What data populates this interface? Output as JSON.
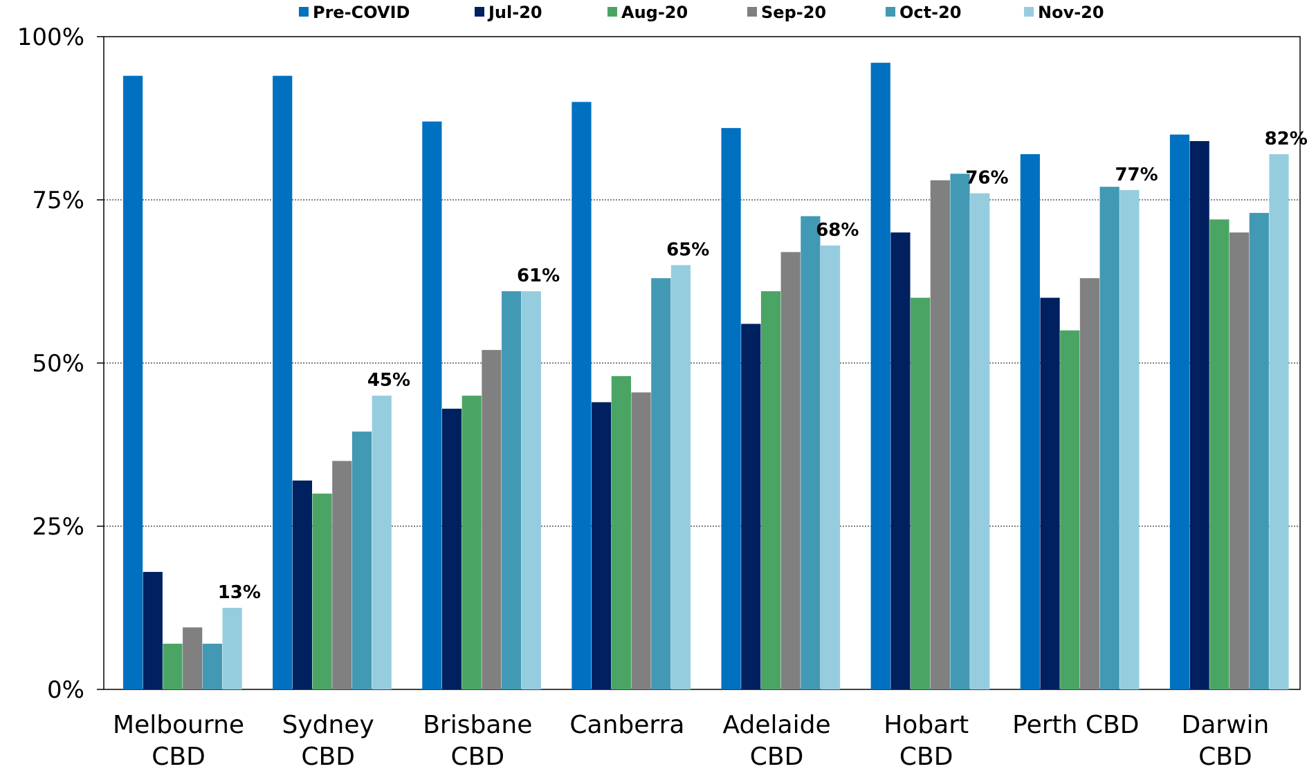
{
  "chart_data": {
    "type": "bar",
    "categories": [
      [
        "Melbourne",
        "CBD"
      ],
      [
        "Sydney",
        "CBD"
      ],
      [
        "Brisbane",
        "CBD"
      ],
      [
        "Canberra"
      ],
      [
        "Adelaide",
        "CBD"
      ],
      [
        "Hobart",
        "CBD"
      ],
      [
        "Perth CBD"
      ],
      [
        "Darwin",
        "CBD"
      ]
    ],
    "series": [
      {
        "name": "Pre-COVID",
        "color": "#0070C0",
        "values": [
          94,
          94,
          87,
          90,
          86,
          96,
          82,
          85
        ]
      },
      {
        "name": "Jul-20",
        "color": "#002060",
        "values": [
          18,
          32,
          43,
          44,
          56,
          70,
          60,
          84
        ]
      },
      {
        "name": "Aug-20",
        "color": "#4AA564",
        "values": [
          7,
          30,
          45,
          48,
          61,
          60,
          55,
          72
        ]
      },
      {
        "name": "Sep-20",
        "color": "#808080",
        "values": [
          9.5,
          35,
          52,
          45.5,
          67,
          78,
          63,
          70
        ]
      },
      {
        "name": "Oct-20",
        "color": "#4299B4",
        "values": [
          7,
          39.5,
          61,
          63,
          72.5,
          79,
          77,
          73
        ]
      },
      {
        "name": "Nov-20",
        "color": "#96CDDE",
        "values": [
          12.5,
          45,
          61,
          65,
          68,
          76,
          76.5,
          82
        ]
      }
    ],
    "data_labels": [
      "13%",
      "45%",
      "61%",
      "65%",
      "68%",
      "76%",
      "77%",
      "82%"
    ],
    "data_labels_series": "Nov-20",
    "yticks": [
      {
        "value": 0,
        "label": "0%"
      },
      {
        "value": 25,
        "label": "25%"
      },
      {
        "value": 50,
        "label": "50%"
      },
      {
        "value": 75,
        "label": "75%"
      },
      {
        "value": 100,
        "label": "100%"
      }
    ],
    "ylim": [
      0,
      100
    ],
    "grid": true,
    "legend_position": "top",
    "title": "",
    "xlabel": "",
    "ylabel": ""
  }
}
